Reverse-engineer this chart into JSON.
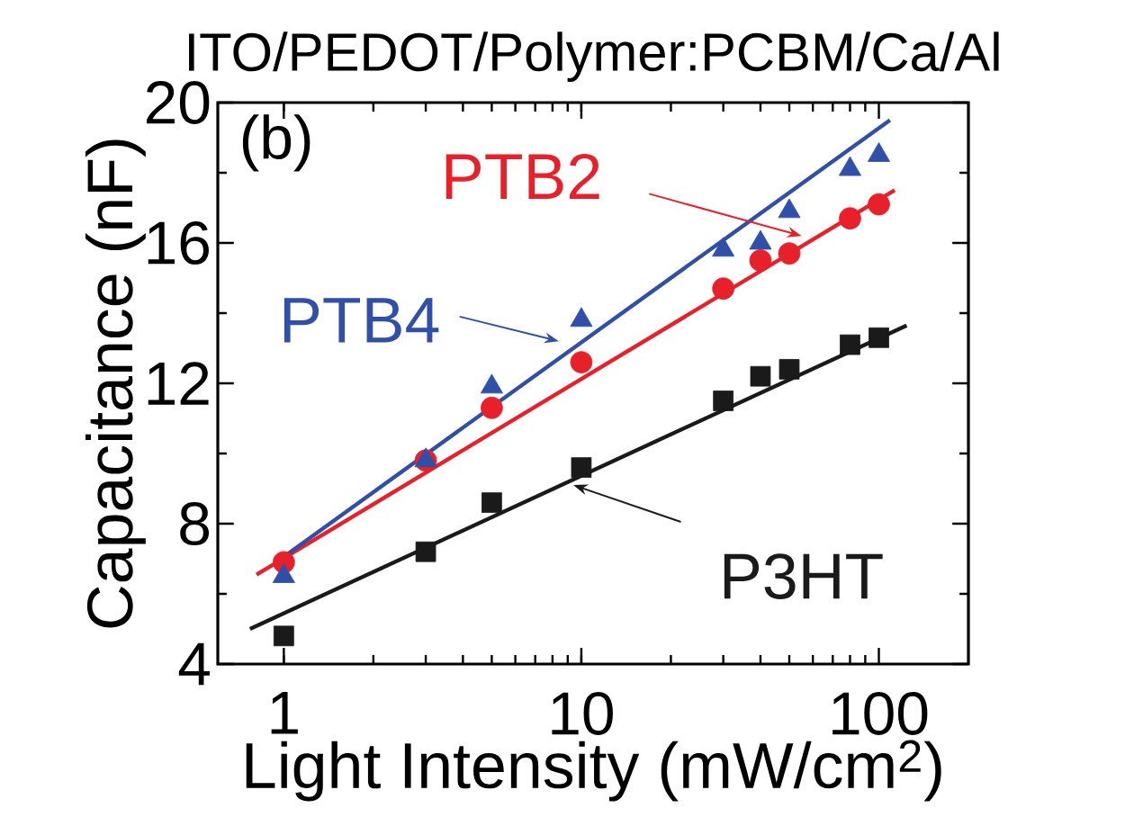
{
  "chart_data": {
    "type": "scatter",
    "title": "ITO/PEDOT/Polymer:PCBM/Ca/Al",
    "xlabel": "Light Intensity (mW/cm$^{2}$)",
    "ylabel": "Capacitance (nF)",
    "annotations": [
      "(b)"
    ],
    "legend": "top left",
    "log": "x",
    "xlim": [
      0.6,
      200
    ],
    "ylim": [
      4,
      20
    ],
    "xticks": [
      1,
      10,
      100
    ],
    "yticks": [
      4,
      8,
      12,
      16,
      20
    ],
    "series": [
      {
        "name": "P3HT",
        "color": "#1a1a1a",
        "marker": "square",
        "x": [
          1,
          3,
          5,
          10,
          30,
          40,
          50,
          80,
          100
        ],
        "values": [
          4.8,
          7.2,
          8.6,
          9.6,
          11.5,
          12.2,
          12.4,
          13.1,
          13.3
        ]
      },
      {
        "name": "PTB2",
        "color": "#e8202a",
        "marker": "circle",
        "x": [
          1,
          3,
          5,
          10,
          30,
          40,
          50,
          80,
          100
        ],
        "values": [
          6.9,
          9.8,
          11.3,
          12.6,
          14.7,
          15.5,
          15.7,
          16.7,
          17.1
        ]
      },
      {
        "name": "PTB4",
        "color": "#2f4fa8",
        "marker": "triangle",
        "x": [
          1,
          3,
          5,
          10,
          30,
          40,
          50,
          80,
          100
        ],
        "values": [
          6.5,
          9.8,
          11.9,
          13.8,
          15.8,
          16.0,
          16.9,
          18.1,
          18.5
        ]
      },
      {
        "type": "line",
        "color": "#1a1a1a",
        "x": [
          0.77,
          124
        ],
        "values": [
          5.0,
          13.65
        ]
      },
      {
        "type": "line",
        "color": "#e8202a",
        "x": [
          0.81,
          113
        ],
        "values": [
          6.55,
          17.5
        ]
      },
      {
        "type": "line",
        "color": "#2f4fa8",
        "x": [
          1,
          109
        ],
        "values": [
          7.06,
          19.5
        ]
      }
    ]
  }
}
